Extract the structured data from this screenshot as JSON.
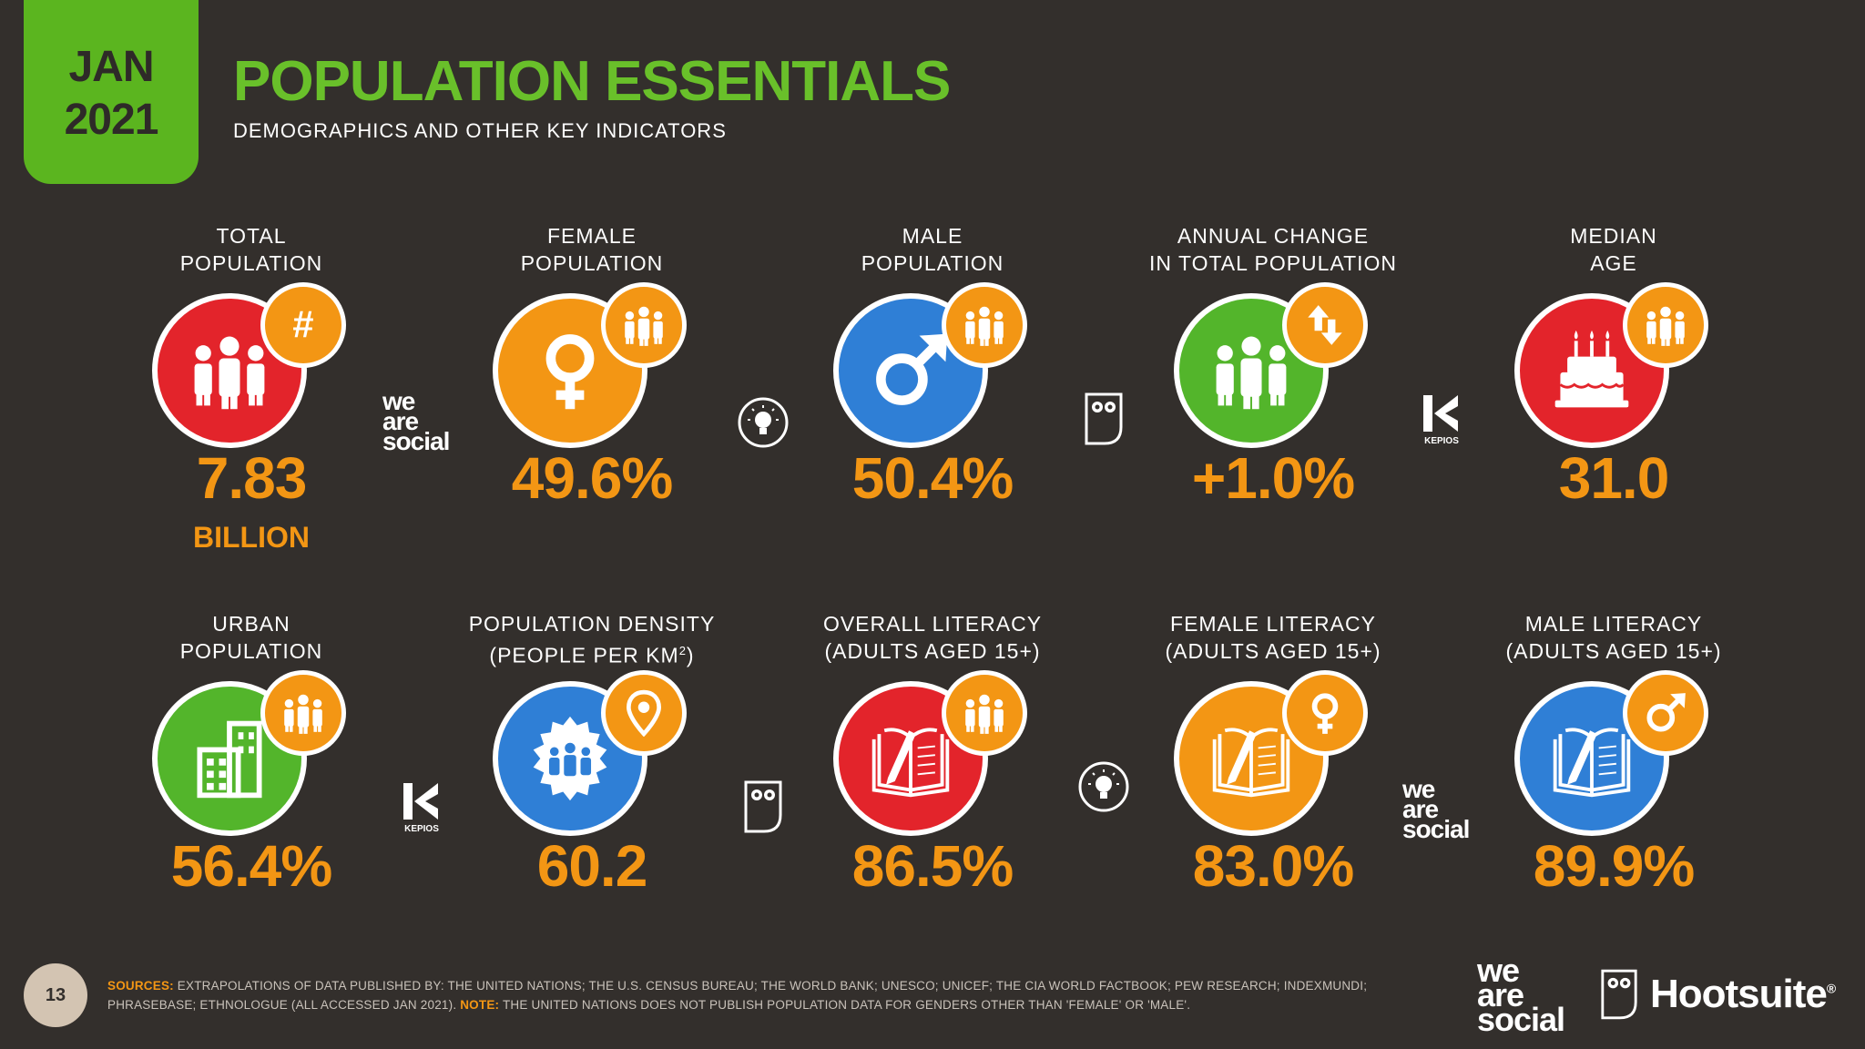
{
  "header": {
    "month": "JAN",
    "year": "2021",
    "title": "POPULATION ESSENTIALS",
    "subtitle": "DEMOGRAPHICS AND OTHER KEY INDICATORS"
  },
  "colors": {
    "background": "#332f2c",
    "accent_green": "#5bb51f",
    "value_orange": "#f39614",
    "red": "#e3242b",
    "blue": "#2f7fd6",
    "green": "#53b52b"
  },
  "stats": [
    {
      "label": "TOTAL\nPOPULATION",
      "value": "7.83",
      "unit": "BILLION",
      "icon": "people-icon",
      "badge": "hash-icon",
      "color": "red"
    },
    {
      "label": "FEMALE\nPOPULATION",
      "value": "49.6%",
      "unit": "",
      "icon": "female-icon",
      "badge": "people-icon",
      "color": "orange"
    },
    {
      "label": "MALE\nPOPULATION",
      "value": "50.4%",
      "unit": "",
      "icon": "male-icon",
      "badge": "people-icon",
      "color": "blue"
    },
    {
      "label": "ANNUAL CHANGE\nIN TOTAL POPULATION",
      "value": "+1.0%",
      "unit": "",
      "icon": "people-icon",
      "badge": "up-down-arrows-icon",
      "color": "green"
    },
    {
      "label": "MEDIAN\nAGE",
      "value": "31.0",
      "unit": "",
      "icon": "birthday-cake-icon",
      "badge": "people-icon",
      "color": "red"
    },
    {
      "label": "URBAN\nPOPULATION",
      "value": "56.4%",
      "unit": "",
      "icon": "buildings-icon",
      "badge": "people-icon",
      "color": "green"
    },
    {
      "label": "POPULATION DENSITY\n(PEOPLE PER KM",
      "label_sup": "2",
      "label_end": ")",
      "value": "60.2",
      "unit": "",
      "icon": "crowd-icon",
      "badge": "location-pin-icon",
      "color": "blue"
    },
    {
      "label": "OVERALL LITERACY\n(ADULTS AGED 15+)",
      "value": "86.5%",
      "unit": "",
      "icon": "book-icon",
      "badge": "people-icon",
      "color": "red"
    },
    {
      "label": "FEMALE LITERACY\n(ADULTS AGED 15+)",
      "value": "83.0%",
      "unit": "",
      "icon": "book-icon",
      "badge": "female-icon",
      "color": "orange"
    },
    {
      "label": "MALE LITERACY\n(ADULTS AGED 15+)",
      "value": "89.9%",
      "unit": "",
      "icon": "book-icon",
      "badge": "male-icon",
      "color": "blue"
    }
  ],
  "brands": {
    "we_are_social": [
      "we",
      "are",
      "social"
    ],
    "kepios": "KEPIOS",
    "hootsuite": "Hootsuite",
    "registered": "®"
  },
  "footer": {
    "page_number": "13",
    "sources_label": "SOURCES:",
    "sources_text": " EXTRAPOLATIONS OF DATA PUBLISHED BY: THE UNITED NATIONS; THE U.S. CENSUS BUREAU; THE WORLD BANK; UNESCO; UNICEF; THE CIA WORLD FACTBOOK; PEW RESEARCH; INDEXMUNDI; PHRASEBASE; ETHNOLOGUE (ALL ACCESSED JAN 2021).",
    "note_label": " NOTE:",
    "note_text": " THE UNITED NATIONS DOES NOT PUBLISH POPULATION DATA FOR GENDERS OTHER THAN 'FEMALE' OR 'MALE'."
  }
}
